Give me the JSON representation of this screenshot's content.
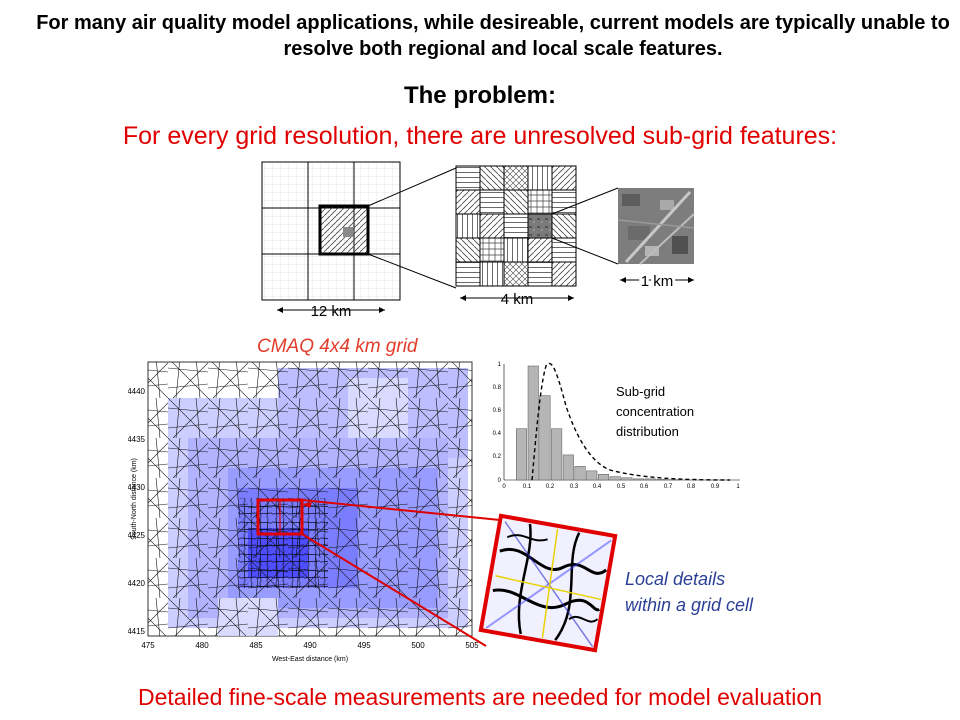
{
  "intro_text": "For many air quality model applications, while desireable, current models are typically unable to resolve both regional and local scale features.",
  "problem_title": "The problem:",
  "subheading": "For every grid resolution, there are unresolved sub-grid features:",
  "grid_diagram": {
    "label_12km": "12 km",
    "label_4km": "4 km",
    "label_1km": "1 km"
  },
  "cmaq_label": "CMAQ 4x4 km grid",
  "map": {
    "y_axis_label": "South-North distance (km)",
    "x_axis_label": "West-East distance (km)",
    "y_ticks": [
      "4440",
      "4435",
      "4430",
      "4425",
      "4420",
      "4415"
    ],
    "x_ticks": [
      "475",
      "480",
      "485",
      "490",
      "495",
      "500",
      "505"
    ]
  },
  "histogram": {
    "label_line1": "Sub-grid",
    "label_line2": "concentration",
    "label_line3": "distribution",
    "y_ticks": [
      "1",
      "0.8",
      "0.6",
      "0.4",
      "0.2",
      "0"
    ],
    "x_ticks": [
      "0",
      "0.1",
      "0.2",
      "0.3",
      "0.4",
      "0.5",
      "0.6",
      "0.7",
      "0.8",
      "0.9",
      "1"
    ],
    "bar_heights": [
      0,
      0.45,
      1.0,
      0.74,
      0.45,
      0.22,
      0.12,
      0.08,
      0.05,
      0.03,
      0.02,
      0.01,
      0.01,
      0.005,
      0.003,
      0,
      0,
      0,
      0,
      0
    ]
  },
  "local_label_line1": "Local details",
  "local_label_line2": "within a grid cell",
  "bottom_text": "Detailed fine-scale measurements are needed for model evaluation",
  "colors": {
    "red_text": "#e00000",
    "cmaq_orange": "#e23c2a",
    "local_blue": "#2a3f95",
    "grid_blue": "#3b3bff"
  }
}
